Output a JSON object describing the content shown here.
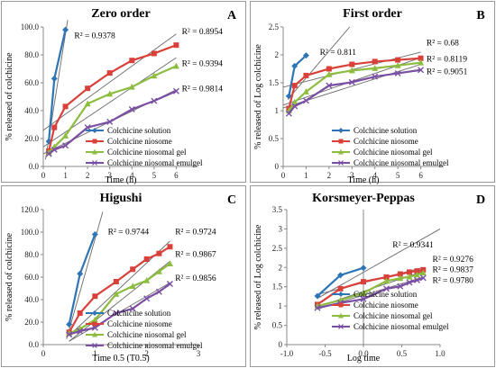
{
  "series_styles": [
    {
      "color": "#2e75b6",
      "marker": "diamond"
    },
    {
      "color": "#d9403a",
      "marker": "square"
    },
    {
      "color": "#8cbd3f",
      "marker": "triangle"
    },
    {
      "color": "#7a4fa3",
      "marker": "x"
    }
  ],
  "chart_data": [
    {
      "type": "line",
      "panel_label": "A",
      "title": "Zero order",
      "xlabel": "Time (h)",
      "ylabel": "% released of colchicine",
      "xlim": [
        0,
        7
      ],
      "ylim": [
        0,
        100
      ],
      "xticks": [
        {
          "v": 0,
          "t": "0"
        },
        {
          "v": 1,
          "t": "1"
        },
        {
          "v": 2,
          "t": "2"
        },
        {
          "v": 3,
          "t": "3"
        },
        {
          "v": 4,
          "t": "4"
        },
        {
          "v": 5,
          "t": "5"
        },
        {
          "v": 6,
          "t": "6"
        }
      ],
      "yticks": [
        {
          "v": 0,
          "t": "0.0"
        },
        {
          "v": 20,
          "t": "20.0"
        },
        {
          "v": 40,
          "t": "40.0"
        },
        {
          "v": 60,
          "t": "60.0"
        },
        {
          "v": 80,
          "t": "80.0"
        },
        {
          "v": 100,
          "t": "100.0"
        }
      ],
      "grid": false,
      "series": [
        {
          "name": "Colchicine solution",
          "x": [
            0.25,
            0.5,
            1
          ],
          "y": [
            18,
            63,
            98
          ],
          "trend": [
            [
              0.1,
              5
            ],
            [
              1.1,
              105
            ]
          ]
        },
        {
          "name": "Colchicine niosome",
          "x": [
            0.25,
            0.5,
            1,
            2,
            3,
            4,
            5,
            6
          ],
          "y": [
            11,
            28,
            43,
            56,
            67,
            76,
            81,
            87
          ],
          "trend": [
            [
              0,
              26
            ],
            [
              6,
              95
            ]
          ]
        },
        {
          "name": "Colchicine niosomal gel",
          "x": [
            0.25,
            0.5,
            1,
            2,
            3,
            4,
            5,
            6
          ],
          "y": [
            10,
            14,
            22,
            45,
            52,
            57,
            65,
            72
          ],
          "trend": [
            [
              0,
              14
            ],
            [
              6,
              78
            ]
          ]
        },
        {
          "name": "Colchicine niosomal emulgel",
          "x": [
            0.25,
            0.5,
            1,
            2,
            3,
            4,
            5,
            6
          ],
          "y": [
            9,
            12,
            15,
            28,
            32,
            41,
            47,
            54
          ],
          "trend": [
            [
              0,
              9
            ],
            [
              6,
              55
            ]
          ]
        }
      ],
      "annotations": [
        {
          "text": "R² = 0.9378",
          "x": 1.4,
          "y": 92
        },
        {
          "text": "R² = 0.8954",
          "x": 6.25,
          "y": 95
        },
        {
          "text": "R² = 0.9394",
          "x": 6.25,
          "y": 72
        },
        {
          "text": "R² = 0.9814",
          "x": 6.25,
          "y": 54
        }
      ],
      "legend": "lower-right"
    },
    {
      "type": "line",
      "panel_label": "B",
      "title": "First order",
      "xlabel": "Time (h)",
      "ylabel": "% released of Log colchicine",
      "xlim": [
        0,
        7
      ],
      "ylim": [
        0,
        2.5
      ],
      "xticks": [
        {
          "v": 0,
          "t": "0"
        },
        {
          "v": 1,
          "t": "1"
        },
        {
          "v": 2,
          "t": "2"
        },
        {
          "v": 3,
          "t": "3"
        },
        {
          "v": 4,
          "t": "4"
        },
        {
          "v": 5,
          "t": "5"
        },
        {
          "v": 6,
          "t": "6"
        }
      ],
      "yticks": [
        {
          "v": 0,
          "t": "0"
        },
        {
          "v": 0.5,
          "t": "0.5"
        },
        {
          "v": 1,
          "t": "1"
        },
        {
          "v": 1.5,
          "t": "1.5"
        },
        {
          "v": 2,
          "t": "2"
        },
        {
          "v": 2.5,
          "t": "2.5"
        }
      ],
      "grid": false,
      "series": [
        {
          "name": "Colchicine solution",
          "x": [
            0.25,
            0.5,
            1
          ],
          "y": [
            1.26,
            1.8,
            1.99
          ],
          "trend": [
            [
              0.2,
              1.2
            ],
            [
              2.9,
              2.5
            ]
          ]
        },
        {
          "name": "Colchicine niosome",
          "x": [
            0.25,
            0.5,
            1,
            2,
            3,
            4,
            5,
            6
          ],
          "y": [
            1.04,
            1.45,
            1.63,
            1.75,
            1.83,
            1.88,
            1.91,
            1.94
          ],
          "trend": [
            [
              0,
              1.42
            ],
            [
              6,
              2.05
            ]
          ]
        },
        {
          "name": "Colchicine niosomal gel",
          "x": [
            0.25,
            0.5,
            1,
            2,
            3,
            4,
            5,
            6
          ],
          "y": [
            1.0,
            1.15,
            1.34,
            1.65,
            1.72,
            1.76,
            1.81,
            1.86
          ],
          "trend": [
            [
              0,
              1.1
            ],
            [
              6,
              1.95
            ]
          ]
        },
        {
          "name": "Colchicine niosomal emulgel",
          "x": [
            0.25,
            0.5,
            1,
            2,
            3,
            4,
            5,
            6
          ],
          "y": [
            0.95,
            1.08,
            1.18,
            1.45,
            1.51,
            1.61,
            1.67,
            1.73
          ],
          "trend": [
            [
              0,
              1.05
            ],
            [
              6,
              1.83
            ]
          ]
        }
      ],
      "annotations": [
        {
          "text": "R² = 0.811",
          "x": 1.6,
          "y": 2.0
        },
        {
          "text": "R² = 0.68",
          "x": 6.25,
          "y": 2.17
        },
        {
          "text": "R² = 0.8119",
          "x": 6.25,
          "y": 1.88
        },
        {
          "text": "R² = 0.9051",
          "x": 6.25,
          "y": 1.65
        }
      ],
      "legend": "lower-right"
    },
    {
      "type": "line",
      "panel_label": "C",
      "title": "Higushi",
      "xlabel": "Time 0.5 (T0.5)",
      "ylabel": "% released of colchicine",
      "xlim": [
        0,
        3
      ],
      "ylim": [
        0,
        120
      ],
      "xticks": [
        {
          "v": 0,
          "t": "0"
        },
        {
          "v": 1,
          "t": "1"
        },
        {
          "v": 2,
          "t": "2"
        },
        {
          "v": 3,
          "t": "3"
        }
      ],
      "yticks": [
        {
          "v": 0,
          "t": "0.0"
        },
        {
          "v": 20,
          "t": "20.0"
        },
        {
          "v": 40,
          "t": "40.0"
        },
        {
          "v": 60,
          "t": "60.0"
        },
        {
          "v": 80,
          "t": "80.0"
        },
        {
          "v": 100,
          "t": "100.0"
        },
        {
          "v": 120,
          "t": "120.0"
        }
      ],
      "grid": false,
      "series": [
        {
          "name": "Colchicine solution",
          "x": [
            0.5,
            0.71,
            1
          ],
          "y": [
            18,
            63,
            98
          ],
          "trend": [
            [
              0.45,
              5
            ],
            [
              1.15,
              118
            ]
          ]
        },
        {
          "name": "Colchicine niosome",
          "x": [
            0.5,
            0.71,
            1,
            1.41,
            1.73,
            2,
            2.24,
            2.45
          ],
          "y": [
            11,
            28,
            43,
            56,
            67,
            76,
            81,
            87
          ],
          "trend": [
            [
              0.5,
              8
            ],
            [
              2.45,
              92
            ]
          ]
        },
        {
          "name": "Colchicine niosomal gel",
          "x": [
            0.5,
            0.71,
            1,
            1.41,
            1.73,
            2,
            2.24,
            2.45
          ],
          "y": [
            10,
            14,
            22,
            45,
            52,
            57,
            65,
            72
          ],
          "trend": [
            [
              0.5,
              3
            ],
            [
              2.45,
              74
            ]
          ]
        },
        {
          "name": "Colchicine niosomal emulgel",
          "x": [
            0.5,
            0.71,
            1,
            1.41,
            1.73,
            2,
            2.24,
            2.45
          ],
          "y": [
            9,
            12,
            15,
            28,
            32,
            41,
            47,
            54
          ],
          "trend": [
            [
              0.5,
              3
            ],
            [
              2.45,
              55
            ]
          ]
        }
      ],
      "annotations": [
        {
          "text": "R² = 0.9744",
          "x": 1.25,
          "y": 98
        },
        {
          "text": "R² = 0.9724",
          "x": 2.55,
          "y": 98
        },
        {
          "text": "R² = 0.9867",
          "x": 2.55,
          "y": 78
        },
        {
          "text": "R² = 0.9856",
          "x": 2.55,
          "y": 57
        }
      ],
      "legend": "lower-right"
    },
    {
      "type": "line",
      "panel_label": "D",
      "title": "Korsmeyer-Peppas",
      "xlabel": "Log time",
      "ylabel": "% released of Log colchicine",
      "xlim": [
        -1,
        1
      ],
      "ylim": [
        0,
        3.5
      ],
      "xticks": [
        {
          "v": -1,
          "t": "-1.0"
        },
        {
          "v": -0.5,
          "t": "-0.5"
        },
        {
          "v": 0,
          "t": "0.0"
        },
        {
          "v": 0.5,
          "t": "0.5"
        },
        {
          "v": 1,
          "t": "1.0"
        }
      ],
      "yticks": [
        {
          "v": 0,
          "t": "0"
        },
        {
          "v": 0.5,
          "t": "0.5"
        },
        {
          "v": 1,
          "t": "1"
        },
        {
          "v": 1.5,
          "t": "1.5"
        },
        {
          "v": 2,
          "t": "2"
        },
        {
          "v": 2.5,
          "t": "2.5"
        },
        {
          "v": 3,
          "t": "3"
        },
        {
          "v": 3.5,
          "t": "3.5"
        }
      ],
      "grid": false,
      "series": [
        {
          "name": "Colchicine solution",
          "x": [
            -0.6,
            -0.3,
            0
          ],
          "y": [
            1.26,
            1.8,
            1.99
          ],
          "trend": [
            [
              -0.6,
              1.2
            ],
            [
              1.0,
              3.0
            ]
          ]
        },
        {
          "name": "Colchicine niosome",
          "x": [
            -0.6,
            -0.3,
            0,
            0.3,
            0.48,
            0.6,
            0.7,
            0.78
          ],
          "y": [
            1.04,
            1.45,
            1.63,
            1.75,
            1.83,
            1.88,
            1.91,
            1.94
          ],
          "trend": [
            [
              -0.6,
              1.3
            ],
            [
              0.78,
              2.0
            ]
          ]
        },
        {
          "name": "Colchicine niosomal gel",
          "x": [
            -0.6,
            -0.3,
            0,
            0.3,
            0.48,
            0.6,
            0.7,
            0.78
          ],
          "y": [
            1.0,
            1.15,
            1.34,
            1.65,
            1.72,
            1.76,
            1.81,
            1.86
          ],
          "trend": [
            [
              -0.6,
              0.98
            ],
            [
              0.78,
              1.9
            ]
          ]
        },
        {
          "name": "Colchicine niosomal emulgel",
          "x": [
            -0.6,
            -0.3,
            0,
            0.3,
            0.48,
            0.6,
            0.7,
            0.78
          ],
          "y": [
            0.95,
            1.08,
            1.18,
            1.45,
            1.51,
            1.61,
            1.67,
            1.73
          ],
          "trend": [
            [
              -0.6,
              0.92
            ],
            [
              0.78,
              1.75
            ]
          ]
        }
      ],
      "annotations": [
        {
          "text": "R² = 0.9341",
          "x": 0.38,
          "y": 2.52
        },
        {
          "text": "R² = 0.9276",
          "x": 0.9,
          "y": 2.15
        },
        {
          "text": "R² = 0.9837",
          "x": 0.9,
          "y": 1.88
        },
        {
          "text": "R² = 0.9780",
          "x": 0.9,
          "y": 1.6
        }
      ],
      "legend": "lower-right"
    }
  ]
}
